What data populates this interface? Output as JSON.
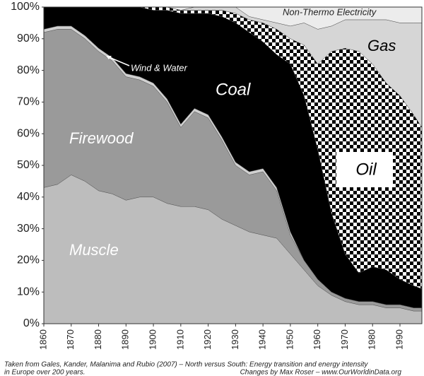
{
  "chart_data": {
    "type": "stacked-area",
    "x": [
      1860,
      1865,
      1870,
      1875,
      1880,
      1885,
      1890,
      1895,
      1900,
      1905,
      1910,
      1915,
      1920,
      1925,
      1930,
      1935,
      1940,
      1945,
      1950,
      1955,
      1960,
      1965,
      1970,
      1975,
      1980,
      1985,
      1990,
      1995,
      1998
    ],
    "series": [
      {
        "name": "Muscle",
        "color": "#bdbdbd",
        "values": [
          43,
          44,
          47,
          45,
          42,
          41,
          39,
          40,
          40,
          38,
          37,
          37,
          36,
          33,
          31,
          29,
          28,
          27,
          22,
          17,
          12,
          9,
          7,
          6,
          6,
          5,
          5,
          4,
          4
        ]
      },
      {
        "name": "Firewood",
        "color": "#9a9a9a",
        "values": [
          49,
          49,
          46,
          45,
          44,
          42,
          39,
          37,
          35,
          32,
          25,
          30,
          29,
          25,
          19,
          18,
          20,
          15,
          6,
          3,
          2,
          1,
          1,
          1,
          1,
          1,
          1,
          1,
          1
        ]
      },
      {
        "name": "Wind & Water",
        "color": "#d0d0d0",
        "values": [
          1,
          1,
          1,
          1,
          1,
          1,
          1,
          1,
          1,
          1,
          1,
          1,
          1,
          1,
          1,
          1,
          1,
          1,
          1,
          0,
          0,
          0,
          0,
          0,
          0,
          0,
          0,
          0,
          0
        ]
      },
      {
        "name": "Coal",
        "color": "#000000",
        "values": [
          7,
          6,
          6,
          9,
          13,
          16,
          21,
          22,
          23,
          28,
          35,
          30,
          32,
          38,
          44,
          44,
          40,
          42,
          53,
          52,
          41,
          25,
          14,
          9,
          11,
          11,
          8,
          7,
          6
        ]
      },
      {
        "name": "Oil",
        "color": "#000000",
        "pattern": "checker",
        "values": [
          0,
          0,
          0,
          0,
          0,
          0,
          0,
          0,
          1,
          1,
          1,
          1,
          1,
          2,
          3,
          4,
          6,
          8,
          8,
          16,
          27,
          51,
          65,
          70,
          64,
          59,
          58,
          54,
          51
        ]
      },
      {
        "name": "Gas",
        "color": "#d6d6d6",
        "values": [
          0,
          0,
          0,
          0,
          0,
          0,
          0,
          0,
          0,
          0,
          0,
          1,
          1,
          1,
          2,
          1,
          1,
          2,
          4,
          7,
          11,
          8,
          9,
          10,
          14,
          20,
          23,
          29,
          33
        ]
      },
      {
        "name": "Non-Thermo Electricity",
        "color": "#ececec",
        "values": [
          0,
          0,
          0,
          0,
          0,
          0,
          0,
          0,
          0,
          0,
          1,
          0,
          0,
          0,
          0,
          3,
          4,
          5,
          6,
          5,
          7,
          6,
          4,
          4,
          4,
          4,
          5,
          5,
          5
        ]
      }
    ],
    "xlim": [
      1860,
      1998
    ],
    "xticks": [
      1860,
      1870,
      1880,
      1890,
      1900,
      1910,
      1920,
      1930,
      1940,
      1950,
      1960,
      1970,
      1980,
      1990
    ],
    "ylim": [
      0,
      100
    ],
    "yticks": [
      {
        "value": 0,
        "label": "0%"
      },
      {
        "value": 10,
        "label": "10%"
      },
      {
        "value": 20,
        "label": "20%"
      },
      {
        "value": 30,
        "label": "30%"
      },
      {
        "value": 40,
        "label": "40%"
      },
      {
        "value": 50,
        "label": "50%"
      },
      {
        "value": 60,
        "label": "60%"
      },
      {
        "value": 70,
        "label": "70%"
      },
      {
        "value": 80,
        "label": "80%"
      },
      {
        "value": 90,
        "label": "90%"
      },
      {
        "value": 100,
        "label": "100%"
      }
    ],
    "notes": {
      "left": [
        "Taken from Gales, Kander, Malanima and Rubio (2007) – North versus South: Energy transition and energy intensity",
        "in Europe over 200 years."
      ],
      "right": "Changes by Max Roser – www.OurWorldinData.org"
    }
  }
}
